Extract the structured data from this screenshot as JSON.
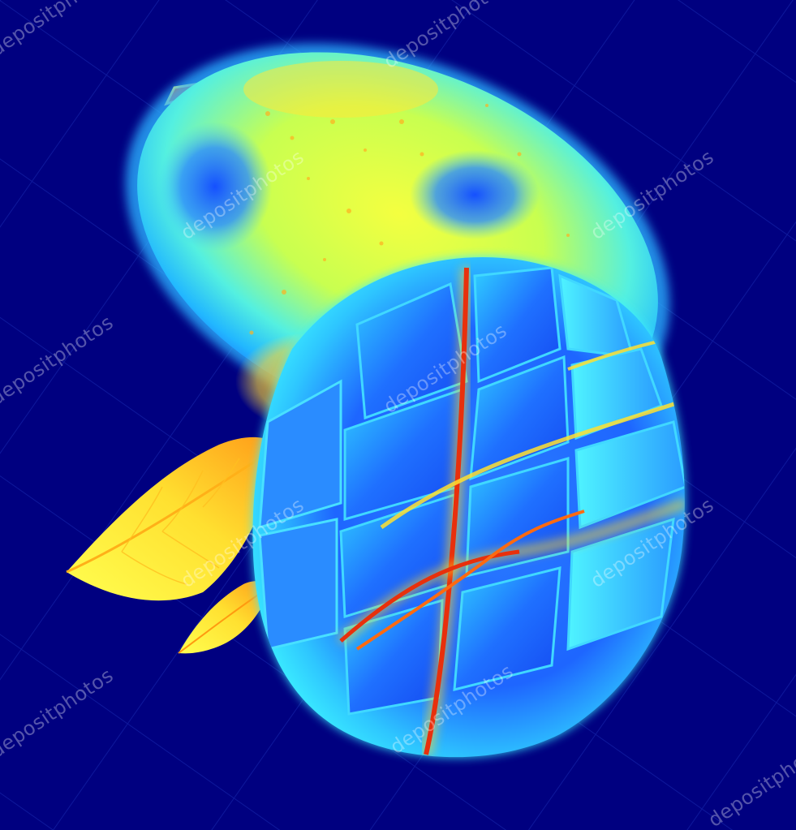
{
  "image": {
    "palette": {
      "background": "#000080",
      "deep_blue": "#0a3cf0",
      "blue": "#1e78ff",
      "cyan": "#2ee6ff",
      "yellow": "#f2ff3c",
      "orange": "#ff9a10",
      "red": "#e0200a"
    }
  },
  "watermark": {
    "text": "depositphotos"
  }
}
